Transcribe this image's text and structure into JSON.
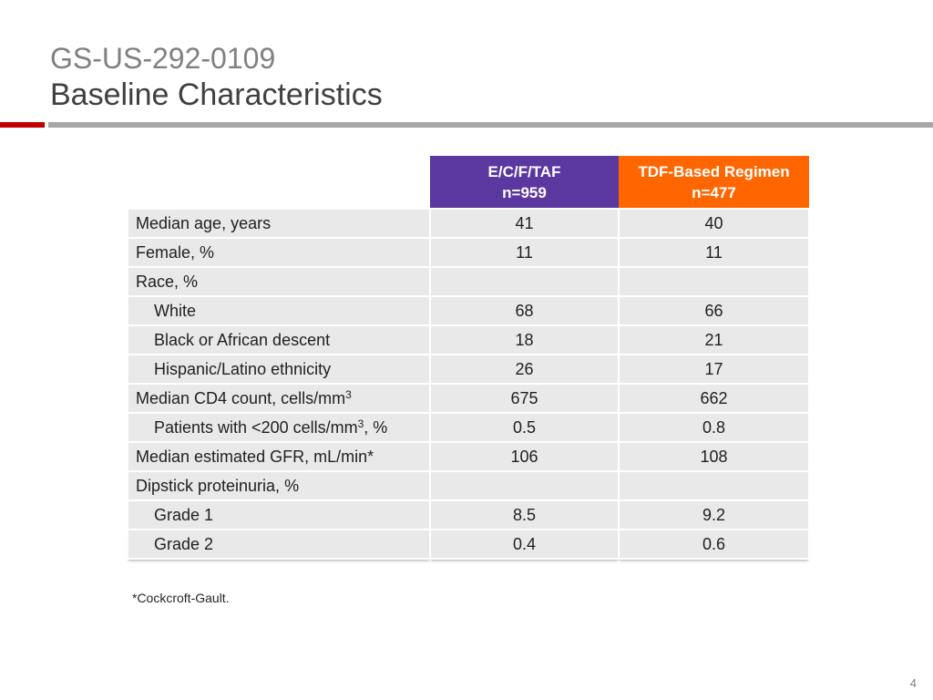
{
  "slide": {
    "title_line1": "GS-US-292-0109",
    "title_line2": "Baseline Characteristics",
    "footnote": "*Cockcroft-Gault.",
    "page_number": "4"
  },
  "colors": {
    "accent_red": "#c00000",
    "rule_gray": "#a6a6a6",
    "ecftaf_header": "#5b37a0",
    "tdf_header": "#ff6600"
  },
  "table": {
    "columns": [
      {
        "line1": "E/C/F/TAF",
        "line2": "n=959"
      },
      {
        "line1": "TDF-Based Regimen",
        "line2": "n=477"
      }
    ],
    "rows": [
      {
        "label": "Median age, years",
        "indent": false,
        "v1": "41",
        "v2": "40"
      },
      {
        "label": "Female, %",
        "indent": false,
        "v1": "11",
        "v2": "11"
      },
      {
        "label": "Race, %",
        "indent": false,
        "v1": "",
        "v2": ""
      },
      {
        "label": "White",
        "indent": true,
        "v1": "68",
        "v2": "66"
      },
      {
        "label": "Black or African descent",
        "indent": true,
        "v1": "18",
        "v2": "21"
      },
      {
        "label": "Hispanic/Latino ethnicity",
        "indent": true,
        "v1": "26",
        "v2": "17"
      },
      {
        "label": "Median CD4 count, cells/mm",
        "sup": "3",
        "indent": false,
        "v1": "675",
        "v2": "662"
      },
      {
        "label": "Patients with <200 cells/mm",
        "sup": "3",
        "suffix": ", %",
        "indent": true,
        "v1": "0.5",
        "v2": "0.8"
      },
      {
        "label": "Median estimated GFR, mL/min*",
        "indent": false,
        "v1": "106",
        "v2": "108"
      },
      {
        "label": "Dipstick proteinuria, %",
        "indent": false,
        "v1": "",
        "v2": ""
      },
      {
        "label": "Grade 1",
        "indent": true,
        "v1": "8.5",
        "v2": "9.2"
      },
      {
        "label": "Grade 2",
        "indent": true,
        "v1": "0.4",
        "v2": "0.6"
      }
    ]
  }
}
